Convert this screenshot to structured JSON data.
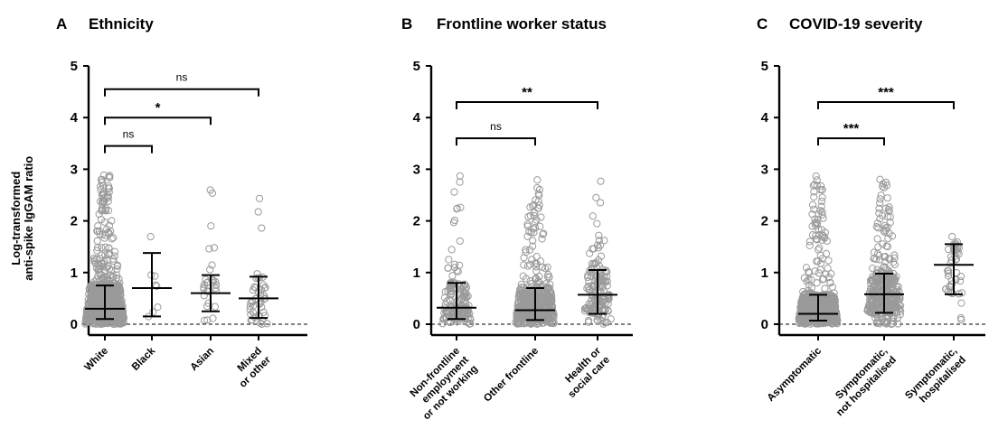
{
  "chart_data": [
    {
      "type": "scatter",
      "panel_letter": "A",
      "title": "Ethnicity",
      "ylabel_lines": [
        "Log-transformed",
        "anti-spike IgGAM ratio"
      ],
      "ylim": [
        0,
        5
      ],
      "yticks": [
        0,
        1,
        2,
        3,
        4,
        5
      ],
      "reference_line": 0,
      "categories": [
        {
          "label_lines": [
            "White"
          ],
          "median": 0.3,
          "q1": 0.1,
          "q3": 0.75,
          "n": 900,
          "max": 2.9
        },
        {
          "label_lines": [
            "Black"
          ],
          "median": 0.7,
          "q1": 0.15,
          "q3": 1.38,
          "n": 8,
          "max": 1.78
        },
        {
          "label_lines": [
            "Asian"
          ],
          "median": 0.6,
          "q1": 0.25,
          "q3": 0.95,
          "n": 30,
          "max": 2.72
        },
        {
          "label_lines": [
            "Mixed",
            "or other"
          ],
          "median": 0.5,
          "q1": 0.12,
          "q3": 0.92,
          "n": 45,
          "max": 2.78
        }
      ],
      "comparisons": [
        {
          "from": 0,
          "to": 1,
          "label": "ns",
          "y": 3.45
        },
        {
          "from": 0,
          "to": 2,
          "label": "*",
          "y": 4.0
        },
        {
          "from": 0,
          "to": 3,
          "label": "ns",
          "y": 4.55
        }
      ]
    },
    {
      "type": "scatter",
      "panel_letter": "B",
      "title": "Frontline worker status",
      "ylim": [
        0,
        5
      ],
      "yticks": [
        0,
        1,
        2,
        3,
        4,
        5
      ],
      "reference_line": 0,
      "categories": [
        {
          "label_lines": [
            "Non-frontline",
            "employment",
            "or not working"
          ],
          "median": 0.32,
          "q1": 0.1,
          "q3": 0.8,
          "n": 160,
          "max": 2.88
        },
        {
          "label_lines": [
            "Other frontline"
          ],
          "median": 0.27,
          "q1": 0.08,
          "q3": 0.7,
          "n": 500,
          "max": 2.88
        },
        {
          "label_lines": [
            "Health or",
            "social care"
          ],
          "median": 0.57,
          "q1": 0.2,
          "q3": 1.05,
          "n": 150,
          "max": 2.85
        }
      ],
      "comparisons": [
        {
          "from": 0,
          "to": 1,
          "label": "ns",
          "y": 3.6
        },
        {
          "from": 0,
          "to": 2,
          "label": "**",
          "y": 4.3
        }
      ]
    },
    {
      "type": "scatter",
      "panel_letter": "C",
      "title": "COVID-19 severity",
      "ylim": [
        0,
        5
      ],
      "yticks": [
        0,
        1,
        2,
        3,
        4,
        5
      ],
      "reference_line": 0,
      "categories": [
        {
          "label_lines": [
            "Asymptomatic"
          ],
          "median": 0.2,
          "q1": 0.07,
          "q3": 0.57,
          "n": 700,
          "max": 2.88
        },
        {
          "label_lines": [
            "Symptomatic,",
            "not hospitalised"
          ],
          "median": 0.58,
          "q1": 0.22,
          "q3": 0.98,
          "n": 350,
          "max": 2.82
        },
        {
          "label_lines": [
            "Symptomatic,",
            "hospitalised"
          ],
          "median": 1.15,
          "q1": 0.58,
          "q3": 1.55,
          "n": 45,
          "max": 2.85
        }
      ],
      "comparisons": [
        {
          "from": 0,
          "to": 1,
          "label": "***",
          "y": 3.6
        },
        {
          "from": 0,
          "to": 2,
          "label": "***",
          "y": 4.3
        }
      ]
    }
  ],
  "colors": {
    "points": "#9a9a9a",
    "axis": "#000000",
    "bars": "#000000"
  }
}
